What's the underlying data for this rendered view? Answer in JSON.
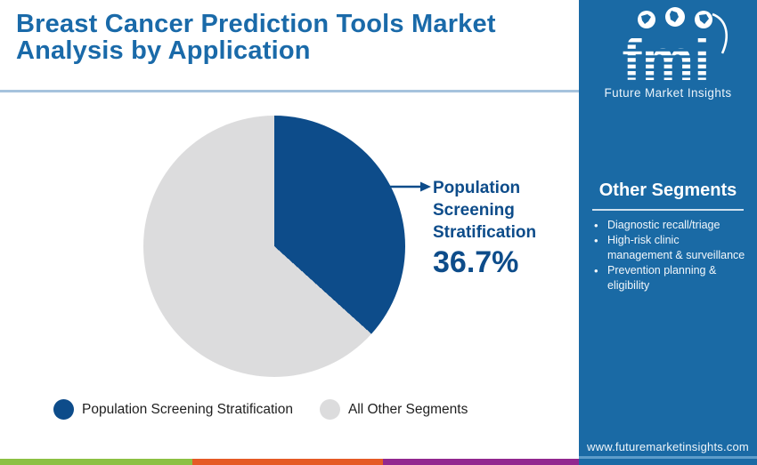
{
  "header": {
    "title": "Breast Cancer Prediction Tools Market Analysis by Application"
  },
  "chart_data": {
    "type": "pie",
    "title": "Breast Cancer Prediction Tools Market Analysis by Application",
    "slices": [
      {
        "label": "Population Screening Stratification",
        "value": 36.7,
        "color": "#0d4c8a"
      },
      {
        "label": "All Other Segments",
        "value": 63.3,
        "color": "#dcdcdd"
      }
    ],
    "start_angle_deg": 0,
    "callout": {
      "label": "Population Screening Stratification",
      "value": "36.7%"
    },
    "legend": [
      {
        "label": "Population Screening Stratification",
        "color": "#0d4c8a"
      },
      {
        "label": "All Other Segments",
        "color": "#dcdcdd"
      }
    ],
    "legend_position": "bottom"
  },
  "sidebar": {
    "logo": {
      "brand": "fmi",
      "caption": "Future Market Insights"
    },
    "other_segments": {
      "heading": "Other Segments",
      "items": [
        "Diagnostic recall/triage",
        "High-risk clinic management & surveillance",
        "Prevention planning & eligibility"
      ]
    },
    "website": "www.futuremarketinsights.com"
  },
  "footer": {
    "stripe_colors": [
      "#8cc043",
      "#e55a25",
      "#92278f"
    ]
  },
  "colors": {
    "title_blue": "#1a6aa9",
    "sidebar_blue": "#1a6aa5",
    "accent_navy": "#0d4c8a",
    "pie_gray": "#dcdcdd",
    "header_rule": "#a6c3dd"
  }
}
